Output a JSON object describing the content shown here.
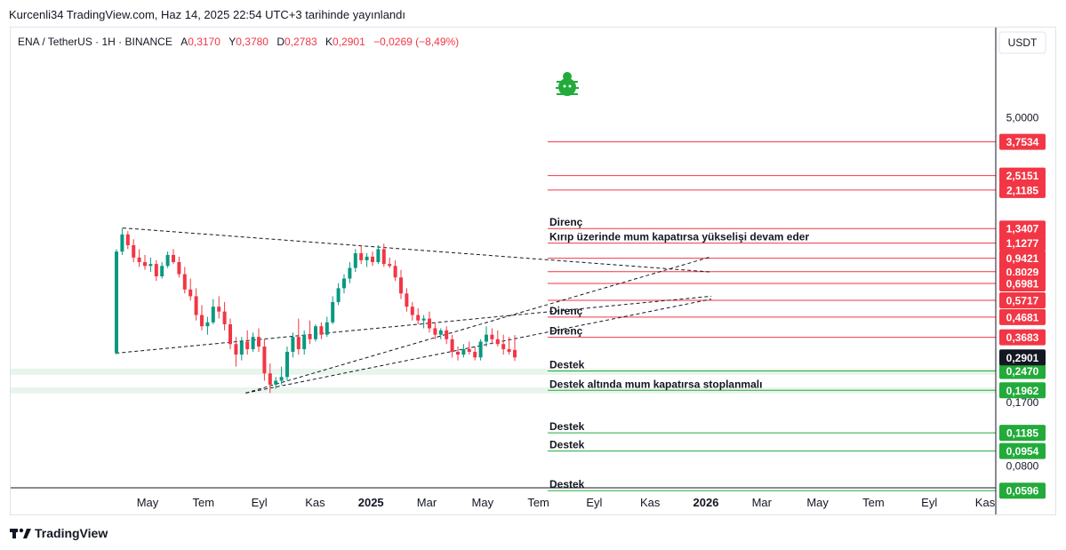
{
  "header": {
    "published_by": "Kurcenli34 TradingView.com, Haz 14, 2025 22:54 UTC+3 tarihinde yayınlandı"
  },
  "symbol": {
    "name": "ENA / TetherUS · 1H · BINANCE",
    "open_label": "A",
    "open": "0,3170",
    "high_label": "Y",
    "high": "0,3780",
    "low_label": "D",
    "low": "0,2783",
    "close_label": "K",
    "close": "0,2901",
    "change": "−0,0269 (−8,49%)"
  },
  "price_axis": {
    "currency": "USDT",
    "ticks": [
      "5,0000",
      "0,1700",
      "0,0800"
    ]
  },
  "time_axis": {
    "labels": [
      {
        "text": "May",
        "bold": false
      },
      {
        "text": "Tem",
        "bold": false
      },
      {
        "text": "Eyl",
        "bold": false
      },
      {
        "text": "Kas",
        "bold": false
      },
      {
        "text": "2025",
        "bold": true
      },
      {
        "text": "Mar",
        "bold": false
      },
      {
        "text": "May",
        "bold": false
      },
      {
        "text": "Tem",
        "bold": false
      },
      {
        "text": "Eyl",
        "bold": false
      },
      {
        "text": "Kas",
        "bold": false
      },
      {
        "text": "2026",
        "bold": true
      },
      {
        "text": "Mar",
        "bold": false
      },
      {
        "text": "May",
        "bold": false
      },
      {
        "text": "Tem",
        "bold": false
      },
      {
        "text": "Eyl",
        "bold": false
      },
      {
        "text": "Kas",
        "bold": false
      }
    ]
  },
  "colors": {
    "up": "#089981",
    "down": "#f23645",
    "resistance": "#f23645",
    "support": "#22ab3a",
    "current_price_bg": "#131722",
    "zone": "#e8f5ec"
  },
  "chart_data": {
    "type": "candlestick",
    "scale": "log",
    "current_price": 0.2901,
    "resistance_levels": [
      3.7534,
      2.5151,
      2.1185,
      1.3407,
      1.1277,
      0.9421,
      0.8029,
      0.6981,
      0.5717,
      0.4681,
      0.3683
    ],
    "support_levels": [
      0.247,
      0.1962,
      0.1185,
      0.0954,
      0.0596
    ],
    "level_labels": [
      {
        "price": 1.3407,
        "text": "Direnç"
      },
      {
        "price": 1.1277,
        "text": "Kırıp üzerinde mum kapatırsa yükselişi devam eder"
      },
      {
        "price": 0.4681,
        "text": "Direnç"
      },
      {
        "price": 0.3683,
        "text": "Direnç"
      },
      {
        "price": 0.247,
        "text": "Destek"
      },
      {
        "price": 0.1962,
        "text": "Destek altında mum kapatırsa stoplanmalı"
      },
      {
        "price": 0.1185,
        "text": "Destek"
      },
      {
        "price": 0.0954,
        "text": "Destek"
      },
      {
        "price": 0.0596,
        "text": "Destek"
      }
    ],
    "candles": [
      [
        0.305,
        1.05,
        0.3,
        1.02
      ],
      [
        1.02,
        1.35,
        0.98,
        1.25
      ],
      [
        1.25,
        1.3,
        1.05,
        1.1
      ],
      [
        1.1,
        1.18,
        0.9,
        0.95
      ],
      [
        0.95,
        1.05,
        0.85,
        0.9
      ],
      [
        0.9,
        0.98,
        0.82,
        0.86
      ],
      [
        0.86,
        0.95,
        0.8,
        0.88
      ],
      [
        0.88,
        0.92,
        0.72,
        0.76
      ],
      [
        0.76,
        0.9,
        0.74,
        0.86
      ],
      [
        0.86,
        1.02,
        0.84,
        0.98
      ],
      [
        0.98,
        1.05,
        0.88,
        0.9
      ],
      [
        0.9,
        0.96,
        0.75,
        0.78
      ],
      [
        0.78,
        0.85,
        0.62,
        0.65
      ],
      [
        0.65,
        0.74,
        0.57,
        0.6
      ],
      [
        0.6,
        0.66,
        0.45,
        0.48
      ],
      [
        0.48,
        0.54,
        0.4,
        0.42
      ],
      [
        0.42,
        0.47,
        0.38,
        0.44
      ],
      [
        0.44,
        0.58,
        0.43,
        0.53
      ],
      [
        0.53,
        0.6,
        0.46,
        0.5
      ],
      [
        0.5,
        0.56,
        0.4,
        0.43
      ],
      [
        0.43,
        0.46,
        0.32,
        0.34
      ],
      [
        0.34,
        0.37,
        0.26,
        0.3
      ],
      [
        0.3,
        0.37,
        0.28,
        0.35
      ],
      [
        0.35,
        0.4,
        0.3,
        0.32
      ],
      [
        0.32,
        0.39,
        0.31,
        0.37
      ],
      [
        0.37,
        0.41,
        0.31,
        0.33
      ],
      [
        0.33,
        0.36,
        0.22,
        0.24
      ],
      [
        0.24,
        0.27,
        0.19,
        0.21
      ],
      [
        0.21,
        0.23,
        0.2,
        0.22
      ],
      [
        0.22,
        0.26,
        0.21,
        0.23
      ],
      [
        0.23,
        0.33,
        0.22,
        0.31
      ],
      [
        0.31,
        0.39,
        0.29,
        0.37
      ],
      [
        0.37,
        0.46,
        0.3,
        0.32
      ],
      [
        0.32,
        0.4,
        0.3,
        0.38
      ],
      [
        0.38,
        0.45,
        0.34,
        0.36
      ],
      [
        0.36,
        0.43,
        0.35,
        0.42
      ],
      [
        0.42,
        0.44,
        0.36,
        0.38
      ],
      [
        0.38,
        0.47,
        0.37,
        0.44
      ],
      [
        0.44,
        0.6,
        0.43,
        0.56
      ],
      [
        0.56,
        0.7,
        0.54,
        0.66
      ],
      [
        0.66,
        0.78,
        0.62,
        0.74
      ],
      [
        0.74,
        0.9,
        0.7,
        0.84
      ],
      [
        0.84,
        1.05,
        0.8,
        1.0
      ],
      [
        1.0,
        1.1,
        0.88,
        0.92
      ],
      [
        0.92,
        1.0,
        0.85,
        0.96
      ],
      [
        0.96,
        1.02,
        0.86,
        0.9
      ],
      [
        0.9,
        1.1,
        0.88,
        1.05
      ],
      [
        1.05,
        1.12,
        0.85,
        0.88
      ],
      [
        0.88,
        0.95,
        0.84,
        0.86
      ],
      [
        0.86,
        0.92,
        0.72,
        0.75
      ],
      [
        0.75,
        0.82,
        0.58,
        0.62
      ],
      [
        0.62,
        0.66,
        0.5,
        0.53
      ],
      [
        0.53,
        0.56,
        0.45,
        0.48
      ],
      [
        0.48,
        0.52,
        0.43,
        0.45
      ],
      [
        0.45,
        0.48,
        0.41,
        0.46
      ],
      [
        0.46,
        0.5,
        0.39,
        0.41
      ],
      [
        0.41,
        0.44,
        0.36,
        0.38
      ],
      [
        0.38,
        0.41,
        0.36,
        0.4
      ],
      [
        0.4,
        0.42,
        0.34,
        0.36
      ],
      [
        0.36,
        0.38,
        0.29,
        0.31
      ],
      [
        0.31,
        0.33,
        0.28,
        0.3
      ],
      [
        0.3,
        0.34,
        0.29,
        0.32
      ],
      [
        0.32,
        0.35,
        0.3,
        0.31
      ],
      [
        0.31,
        0.33,
        0.28,
        0.29
      ],
      [
        0.29,
        0.36,
        0.28,
        0.35
      ],
      [
        0.35,
        0.42,
        0.33,
        0.38
      ],
      [
        0.38,
        0.41,
        0.34,
        0.36
      ],
      [
        0.36,
        0.4,
        0.33,
        0.34
      ],
      [
        0.34,
        0.38,
        0.3,
        0.32
      ],
      [
        0.32,
        0.37,
        0.3,
        0.31
      ],
      [
        0.317,
        0.378,
        0.278,
        0.2901
      ]
    ],
    "trendlines": [
      {
        "style": "dashed",
        "points": [
          [
            "2024-03-25",
            0.305
          ],
          [
            "2025-11-25",
            0.6
          ]
        ]
      },
      {
        "style": "dashed",
        "points": [
          [
            "2024-04-01",
            1.35
          ],
          [
            "2025-11-25",
            0.8
          ]
        ]
      },
      {
        "style": "dashed",
        "points": [
          [
            "2024-08-05",
            0.19
          ],
          [
            "2025-11-25",
            0.58
          ]
        ]
      },
      {
        "style": "dashed",
        "points": [
          [
            "2024-08-05",
            0.19
          ],
          [
            "2025-11-25",
            0.96
          ]
        ]
      }
    ],
    "support_zones": [
      [
        0.236,
        0.254
      ],
      [
        0.189,
        0.203
      ]
    ]
  }
}
